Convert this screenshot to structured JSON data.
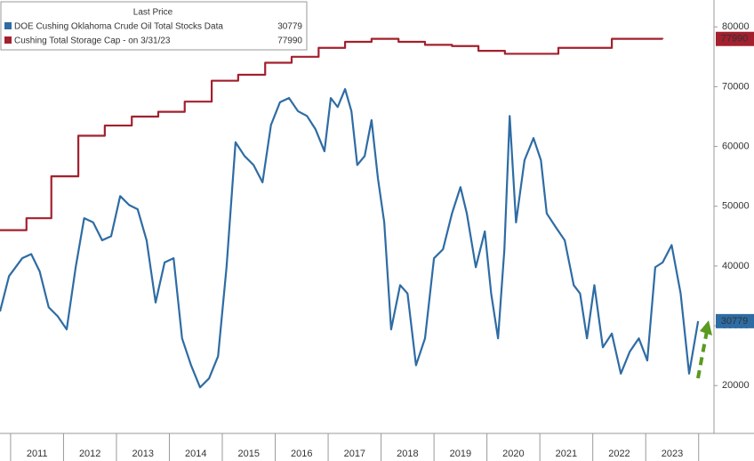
{
  "chart_data": {
    "type": "line",
    "legend_title": "Last Price",
    "categories": [
      "2011",
      "2012",
      "2013",
      "2014",
      "2015",
      "2016",
      "2017",
      "2018",
      "2019",
      "2020",
      "2021",
      "2022",
      "2023"
    ],
    "xlim": [
      2010.8,
      2024.29
    ],
    "xticks": [
      2011,
      2012,
      2013,
      2014,
      2015,
      2016,
      2017,
      2018,
      2019,
      2020,
      2021,
      2022,
      2023,
      2024
    ],
    "ylim": [
      12000,
      84500
    ],
    "yticks": [
      20000,
      30000,
      40000,
      50000,
      60000,
      70000,
      80000
    ],
    "legend": "top-left",
    "series": [
      {
        "name": "DOE Cushing Oklahoma Crude Oil Total Stocks Data",
        "color": "#2e6ca4",
        "x": [
          2010.8,
          2010.97,
          2011.22,
          2011.39,
          2011.55,
          2011.72,
          2011.89,
          2012.06,
          2012.23,
          2012.39,
          2012.56,
          2012.73,
          2012.9,
          2013.07,
          2013.24,
          2013.4,
          2013.57,
          2013.74,
          2013.91,
          2014.08,
          2014.24,
          2014.41,
          2014.58,
          2014.75,
          2014.92,
          2015.08,
          2015.25,
          2015.42,
          2015.59,
          2015.76,
          2015.92,
          2016.09,
          2016.26,
          2016.43,
          2016.6,
          2016.76,
          2016.93,
          2017.05,
          2017.18,
          2017.32,
          2017.44,
          2017.55,
          2017.69,
          2017.82,
          2017.94,
          2018.06,
          2018.19,
          2018.36,
          2018.5,
          2018.66,
          2018.83,
          2019.0,
          2019.17,
          2019.34,
          2019.5,
          2019.62,
          2019.79,
          2019.96,
          2020.08,
          2020.21,
          2020.33,
          2020.43,
          2020.55,
          2020.71,
          2020.88,
          2021.02,
          2021.13,
          2021.3,
          2021.47,
          2021.64,
          2021.76,
          2021.89,
          2022.03,
          2022.19,
          2022.36,
          2022.53,
          2022.7,
          2022.87,
          2023.03,
          2023.18,
          2023.32,
          2023.49,
          2023.66,
          2023.82,
          2023.99
        ],
        "values": [
          32400,
          38300,
          41300,
          42000,
          39100,
          33100,
          31600,
          29400,
          39800,
          48000,
          47300,
          44300,
          45000,
          51700,
          50200,
          49500,
          44300,
          33900,
          40600,
          41300,
          27900,
          23400,
          19700,
          21200,
          24900,
          39800,
          60700,
          58400,
          56900,
          54000,
          63600,
          67400,
          68100,
          65900,
          65100,
          62900,
          59200,
          68100,
          66600,
          69600,
          65900,
          56900,
          58400,
          64400,
          54700,
          47300,
          29400,
          36800,
          35400,
          23400,
          27900,
          41300,
          42800,
          48800,
          53200,
          48800,
          39800,
          45800,
          35400,
          27900,
          42800,
          65100,
          47300,
          57700,
          61400,
          57700,
          48800,
          46500,
          44300,
          36800,
          35400,
          27900,
          36800,
          26400,
          28700,
          22000,
          25700,
          27900,
          24200,
          39800,
          40600,
          43500,
          35400,
          22000,
          30779
        ]
      },
      {
        "name": "Cushing Total Storage Cap - on 3/31/23",
        "color": "#a3202e",
        "step": true,
        "x": [
          2010.8,
          2011.3,
          2011.77,
          2012.28,
          2012.78,
          2013.29,
          2013.79,
          2014.29,
          2014.8,
          2015.3,
          2015.81,
          2016.31,
          2016.82,
          2017.32,
          2017.82,
          2018.33,
          2018.83,
          2019.34,
          2019.84,
          2020.34,
          2021.35,
          2022.36,
          2023.32
        ],
        "values": [
          46000,
          48000,
          55000,
          61800,
          63500,
          65000,
          65800,
          67500,
          71000,
          72000,
          74000,
          75000,
          76500,
          77500,
          78000,
          77500,
          77000,
          76800,
          76000,
          75500,
          76500,
          78000,
          77990
        ]
      }
    ]
  }
}
